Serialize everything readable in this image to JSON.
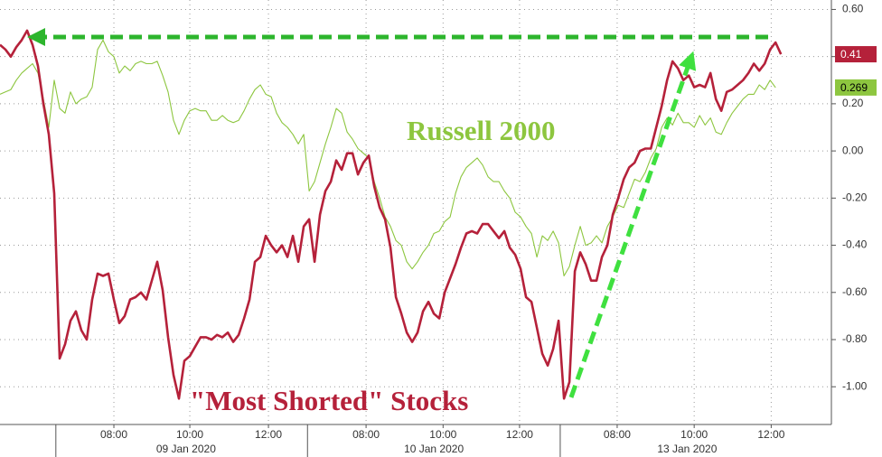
{
  "chart_data": {
    "type": "line",
    "annotations": [
      "Russell 2000",
      "\"Most Shorted\" Stocks"
    ],
    "x": [
      0,
      1,
      2,
      3,
      4,
      5,
      6,
      7,
      8,
      9,
      10,
      11,
      12,
      13,
      14,
      15,
      16,
      17,
      18,
      19,
      20,
      21,
      22,
      23,
      24,
      25,
      26,
      27,
      28,
      29,
      30,
      31,
      32,
      33,
      34,
      35,
      36,
      37,
      38,
      39,
      40,
      41,
      42,
      43,
      44,
      45,
      46,
      47,
      48,
      49,
      50,
      51,
      52,
      53,
      54,
      55,
      56,
      57,
      58,
      59,
      60,
      61,
      62,
      63,
      64,
      65,
      66,
      67,
      68,
      69,
      70,
      71,
      72,
      73,
      74,
      75,
      76,
      77,
      78,
      79,
      80,
      81,
      82,
      83,
      84,
      85,
      86,
      87,
      88,
      89,
      90,
      91,
      92,
      93,
      94,
      95,
      96,
      97,
      98,
      99,
      100,
      101,
      102,
      103,
      104,
      105,
      106,
      107,
      108,
      109,
      110,
      111,
      112,
      113,
      114,
      115,
      116,
      117,
      118,
      119,
      120,
      121,
      122,
      123,
      124,
      125,
      126,
      127,
      128,
      129,
      130,
      131,
      132,
      133,
      134,
      135,
      136,
      137,
      138,
      139,
      140,
      141,
      142,
      143,
      144
    ],
    "series": [
      {
        "name": "Most Shorted",
        "color": "#b5213a",
        "values": [
          0.45,
          0.43,
          0.4,
          0.44,
          0.47,
          0.51,
          0.45,
          0.36,
          0.2,
          0.07,
          -0.18,
          -0.88,
          -0.82,
          -0.72,
          -0.68,
          -0.76,
          -0.8,
          -0.63,
          -0.52,
          -0.53,
          -0.52,
          -0.63,
          -0.73,
          -0.7,
          -0.63,
          -0.62,
          -0.6,
          -0.63,
          -0.55,
          -0.47,
          -0.59,
          -0.79,
          -0.95,
          -1.05,
          -0.89,
          -0.87,
          -0.83,
          -0.79,
          -0.79,
          -0.8,
          -0.78,
          -0.79,
          -0.77,
          -0.81,
          -0.78,
          -0.71,
          -0.63,
          -0.47,
          -0.45,
          -0.36,
          -0.4,
          -0.43,
          -0.4,
          -0.45,
          -0.36,
          -0.47,
          -0.32,
          -0.29,
          -0.47,
          -0.27,
          -0.17,
          -0.13,
          -0.04,
          -0.08,
          -0.01,
          -0.01,
          -0.1,
          -0.05,
          -0.02,
          -0.15,
          -0.24,
          -0.29,
          -0.41,
          -0.62,
          -0.69,
          -0.77,
          -0.81,
          -0.77,
          -0.68,
          -0.64,
          -0.69,
          -0.71,
          -0.6,
          -0.54,
          -0.48,
          -0.41,
          -0.35,
          -0.34,
          -0.35,
          -0.31,
          -0.31,
          -0.34,
          -0.37,
          -0.34,
          -0.41,
          -0.44,
          -0.5,
          -0.62,
          -0.64,
          -0.75,
          -0.86,
          -0.91,
          -0.84,
          -0.72,
          -1.05,
          -0.98,
          -0.51,
          -0.43,
          -0.48,
          -0.55,
          -0.55,
          -0.45,
          -0.4,
          -0.27,
          -0.2,
          -0.12,
          -0.07,
          -0.05,
          0.0,
          0.01,
          0.01,
          0.1,
          0.19,
          0.3,
          0.38,
          0.35,
          0.3,
          0.32,
          0.27,
          0.28,
          0.27,
          0.33,
          0.22,
          0.17,
          0.25,
          0.26,
          0.28,
          0.3,
          0.33,
          0.37,
          0.34,
          0.37,
          0.43,
          0.46,
          0.41
        ]
      },
      {
        "name": "Russell 2000",
        "color": "#8dc63f",
        "values": [
          0.24,
          0.25,
          0.26,
          0.3,
          0.33,
          0.35,
          0.37,
          0.33,
          0.22,
          0.1,
          0.3,
          0.18,
          0.16,
          0.25,
          0.2,
          0.22,
          0.23,
          0.27,
          0.43,
          0.47,
          0.42,
          0.4,
          0.33,
          0.36,
          0.34,
          0.37,
          0.38,
          0.37,
          0.37,
          0.38,
          0.32,
          0.25,
          0.13,
          0.07,
          0.13,
          0.17,
          0.18,
          0.17,
          0.17,
          0.13,
          0.13,
          0.15,
          0.13,
          0.12,
          0.13,
          0.17,
          0.22,
          0.26,
          0.28,
          0.24,
          0.23,
          0.16,
          0.12,
          0.1,
          0.07,
          0.03,
          0.07,
          -0.17,
          -0.13,
          -0.05,
          0.03,
          0.1,
          0.18,
          0.16,
          0.08,
          0.05,
          0.01,
          -0.01,
          -0.03,
          -0.13,
          -0.2,
          -0.28,
          -0.32,
          -0.38,
          -0.4,
          -0.47,
          -0.5,
          -0.47,
          -0.43,
          -0.4,
          -0.35,
          -0.34,
          -0.3,
          -0.28,
          -0.18,
          -0.11,
          -0.07,
          -0.05,
          -0.03,
          -0.06,
          -0.11,
          -0.13,
          -0.13,
          -0.17,
          -0.2,
          -0.26,
          -0.28,
          -0.32,
          -0.35,
          -0.45,
          -0.36,
          -0.38,
          -0.34,
          -0.39,
          -0.53,
          -0.49,
          -0.4,
          -0.32,
          -0.4,
          -0.39,
          -0.36,
          -0.39,
          -0.32,
          -0.28,
          -0.23,
          -0.24,
          -0.18,
          -0.12,
          -0.13,
          -0.09,
          -0.03,
          0.01,
          0.1,
          0.14,
          0.11,
          0.16,
          0.12,
          0.12,
          0.1,
          0.15,
          0.11,
          0.14,
          0.08,
          0.07,
          0.12,
          0.16,
          0.19,
          0.22,
          0.24,
          0.24,
          0.28,
          0.26,
          0.3,
          0.269,
          null
        ]
      }
    ],
    "xlim": [
      0,
      153.3
    ],
    "xticks": [
      {
        "value": 21,
        "label": "08:00"
      },
      {
        "value": 35,
        "label": "10:00"
      },
      {
        "value": 49.5,
        "label": "12:00"
      },
      {
        "value": 67.5,
        "label": "08:00"
      },
      {
        "value": 81.7,
        "label": "10:00"
      },
      {
        "value": 95.8,
        "label": "12:00"
      },
      {
        "value": 113.8,
        "label": "08:00"
      },
      {
        "value": 128,
        "label": "10:00"
      },
      {
        "value": 142.2,
        "label": "12:00"
      }
    ],
    "day_ticks": [
      {
        "value": 34.3,
        "label": "09 Jan 2020"
      },
      {
        "value": 80,
        "label": "10 Jan 2020"
      },
      {
        "value": 126.7,
        "label": "13 Jan 2020"
      }
    ],
    "day_boundaries": [
      10.3,
      56.7,
      103.3
    ],
    "ylim": [
      -1.16,
      0.64
    ],
    "yticks": [
      {
        "value": 0.6,
        "label": "0.60"
      },
      {
        "value": 0.4,
        "label": "0.40"
      },
      {
        "value": 0.2,
        "label": "0.20"
      },
      {
        "value": 0,
        "label": "0.00"
      },
      {
        "value": -0.2,
        "label": "-0.20"
      },
      {
        "value": -0.4,
        "label": "-0.40"
      },
      {
        "value": -0.6,
        "label": "-0.60"
      },
      {
        "value": -0.8,
        "label": "-0.80"
      },
      {
        "value": -1,
        "label": "-1.00"
      }
    ],
    "grid": true
  }
}
